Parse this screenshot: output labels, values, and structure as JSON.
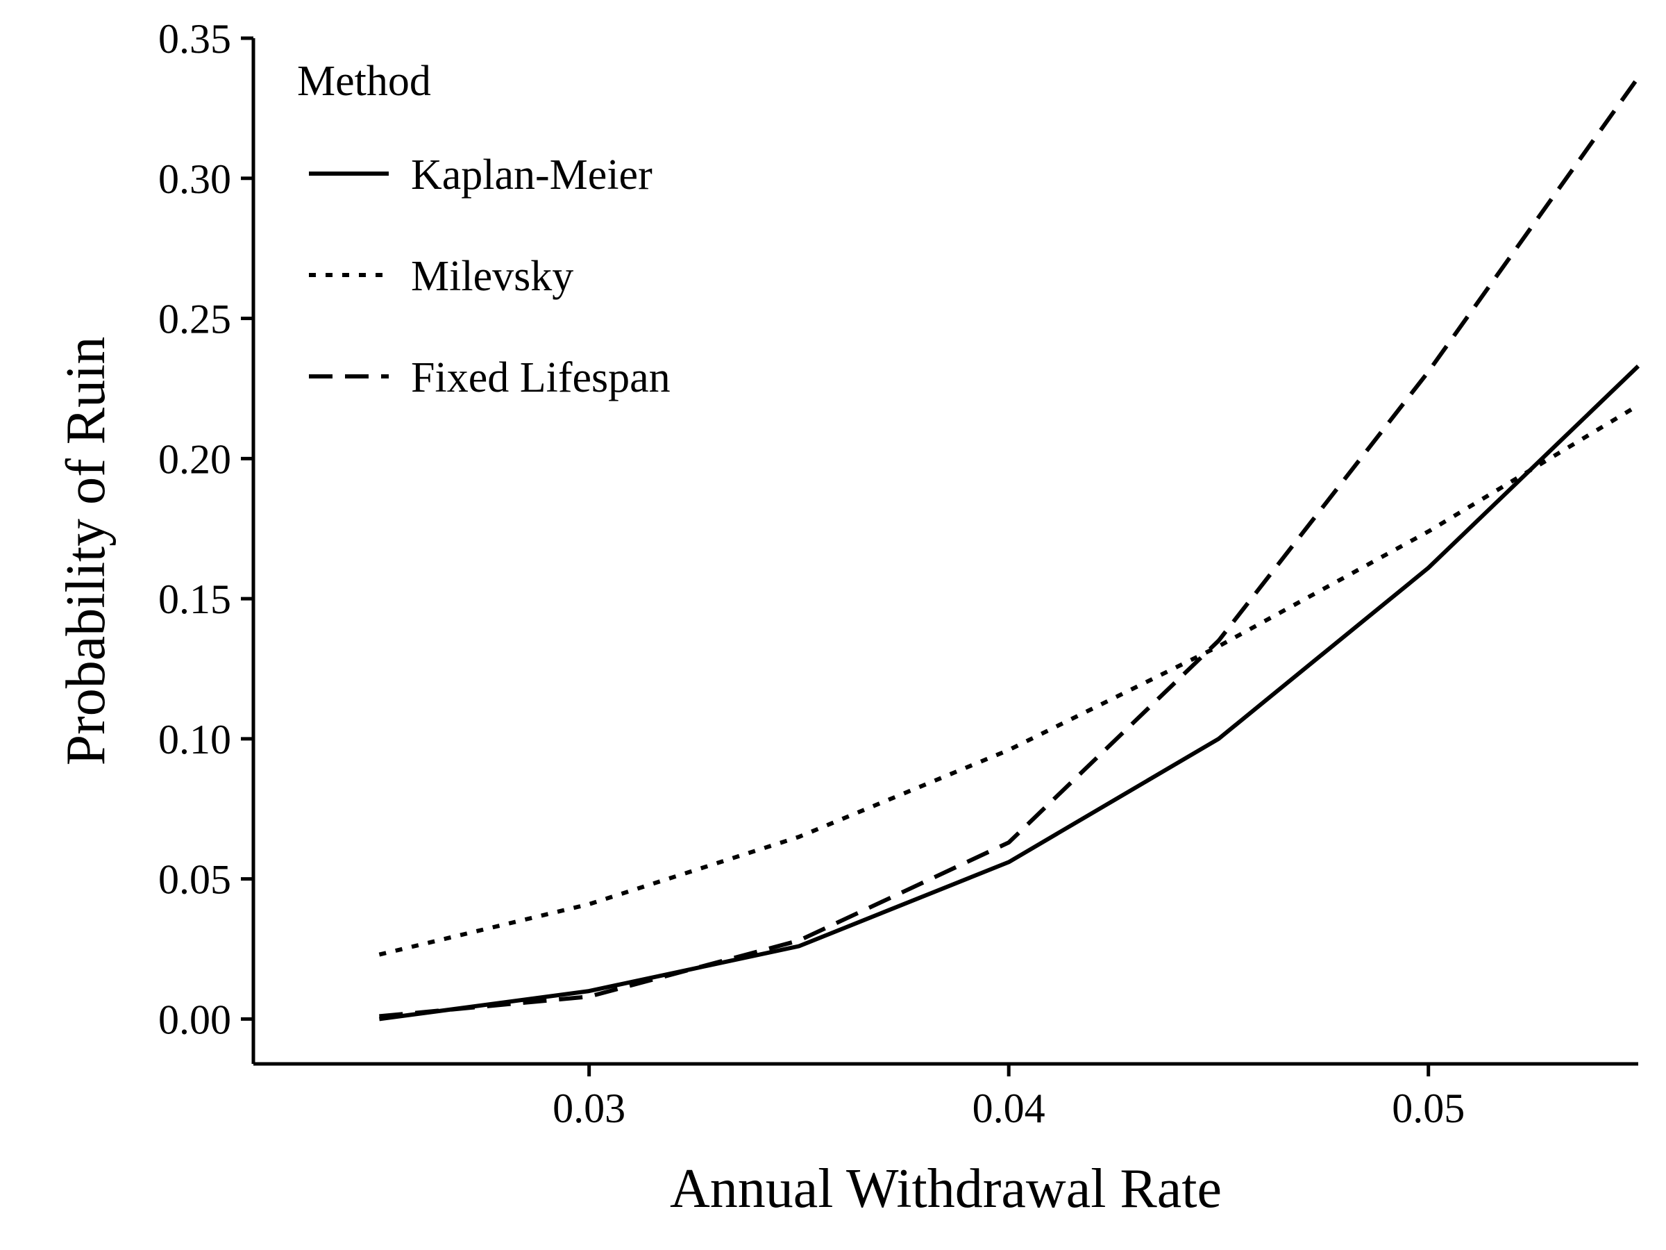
{
  "chart_data": {
    "type": "line",
    "xlabel": "Annual Withdrawal Rate",
    "ylabel": "Probability of Ruin",
    "xlim": [
      0.022,
      0.055
    ],
    "ylim": [
      -0.016,
      0.35
    ],
    "x_ticks": [
      0.03,
      0.04,
      0.05
    ],
    "x_tick_labels": [
      "0.03",
      "0.04",
      "0.05"
    ],
    "y_ticks": [
      0.0,
      0.05,
      0.1,
      0.15,
      0.2,
      0.25,
      0.3,
      0.35
    ],
    "y_tick_labels": [
      "0.00",
      "0.05",
      "0.10",
      "0.15",
      "0.20",
      "0.25",
      "0.30",
      "0.35"
    ],
    "x": [
      0.025,
      0.03,
      0.035,
      0.04,
      0.045,
      0.05,
      0.055
    ],
    "grid": false,
    "legend": {
      "title": "Method",
      "placement": "top-left"
    },
    "series": [
      {
        "name": "Kaplan-Meier",
        "line_style": "solid",
        "values": [
          0.0,
          0.01,
          0.026,
          0.056,
          0.1,
          0.161,
          0.233
        ]
      },
      {
        "name": "Milevsky",
        "line_style": "dotted",
        "values": [
          0.023,
          0.041,
          0.065,
          0.096,
          0.133,
          0.174,
          0.219
        ]
      },
      {
        "name": "Fixed Lifespan",
        "line_style": "dashed",
        "values": [
          0.001,
          0.008,
          0.028,
          0.063,
          0.135,
          0.231,
          0.336
        ]
      }
    ],
    "colors": {
      "line": "#000000",
      "background": "#ffffff"
    }
  }
}
